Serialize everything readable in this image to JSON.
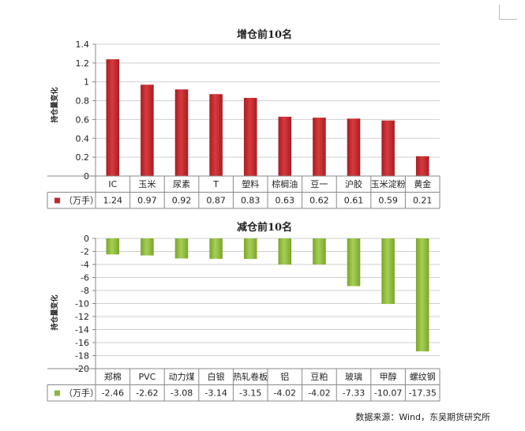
{
  "chart_data": [
    {
      "type": "bar",
      "title": "增仓前10名",
      "ylabel": "持仓量变化",
      "legend_label": "（万手）",
      "categories": [
        "IC",
        "玉米",
        "尿素",
        "T",
        "塑料",
        "棕榈油",
        "豆一",
        "沪胶",
        "玉米淀粉",
        "黄金"
      ],
      "values": [
        1.24,
        0.97,
        0.92,
        0.87,
        0.83,
        0.63,
        0.62,
        0.61,
        0.59,
        0.21
      ],
      "value_labels": [
        "1.24",
        "0.97",
        "0.92",
        "0.87",
        "0.83",
        "0.63",
        "0.62",
        "0.61",
        "0.59",
        "0.21"
      ],
      "ylim": [
        0,
        1.4
      ],
      "yticks": [
        0,
        0.2,
        0.4,
        0.6,
        0.8,
        1,
        1.2,
        1.4
      ],
      "ytick_labels": [
        "0",
        "0.2",
        "0.4",
        "0.6",
        "0.8",
        "1",
        "1.2",
        "1.4"
      ],
      "color": "#c0282d",
      "grid": true,
      "data_table": true
    },
    {
      "type": "bar",
      "title": "减仓前10名",
      "ylabel": "持仓量变化",
      "legend_label": "（万手）",
      "categories": [
        "郑棉",
        "PVC",
        "动力煤",
        "白银",
        "热轧卷板",
        "铝",
        "豆粕",
        "玻璃",
        "甲醇",
        "螺纹钢"
      ],
      "values": [
        -2.46,
        -2.62,
        -3.08,
        -3.14,
        -3.15,
        -4.02,
        -4.02,
        -7.33,
        -10.07,
        -17.35
      ],
      "value_labels": [
        "-2.46",
        "-2.62",
        "-3.08",
        "-3.14",
        "-3.15",
        "-4.02",
        "-4.02",
        "-7.33",
        "-10.07",
        "-17.35"
      ],
      "ylim": [
        -20,
        0
      ],
      "yticks": [
        0,
        -2,
        -4,
        -6,
        -8,
        -10,
        -12,
        -14,
        -16,
        -18,
        -20
      ],
      "ytick_labels": [
        "0",
        "-2",
        "-4",
        "-6",
        "-8",
        "-10",
        "-12",
        "-14",
        "-16",
        "-18",
        "-20"
      ],
      "color": "#8db83a",
      "grid": true,
      "data_table": true
    }
  ],
  "source_note": "数据来源：Wind，东吴期货研究所"
}
